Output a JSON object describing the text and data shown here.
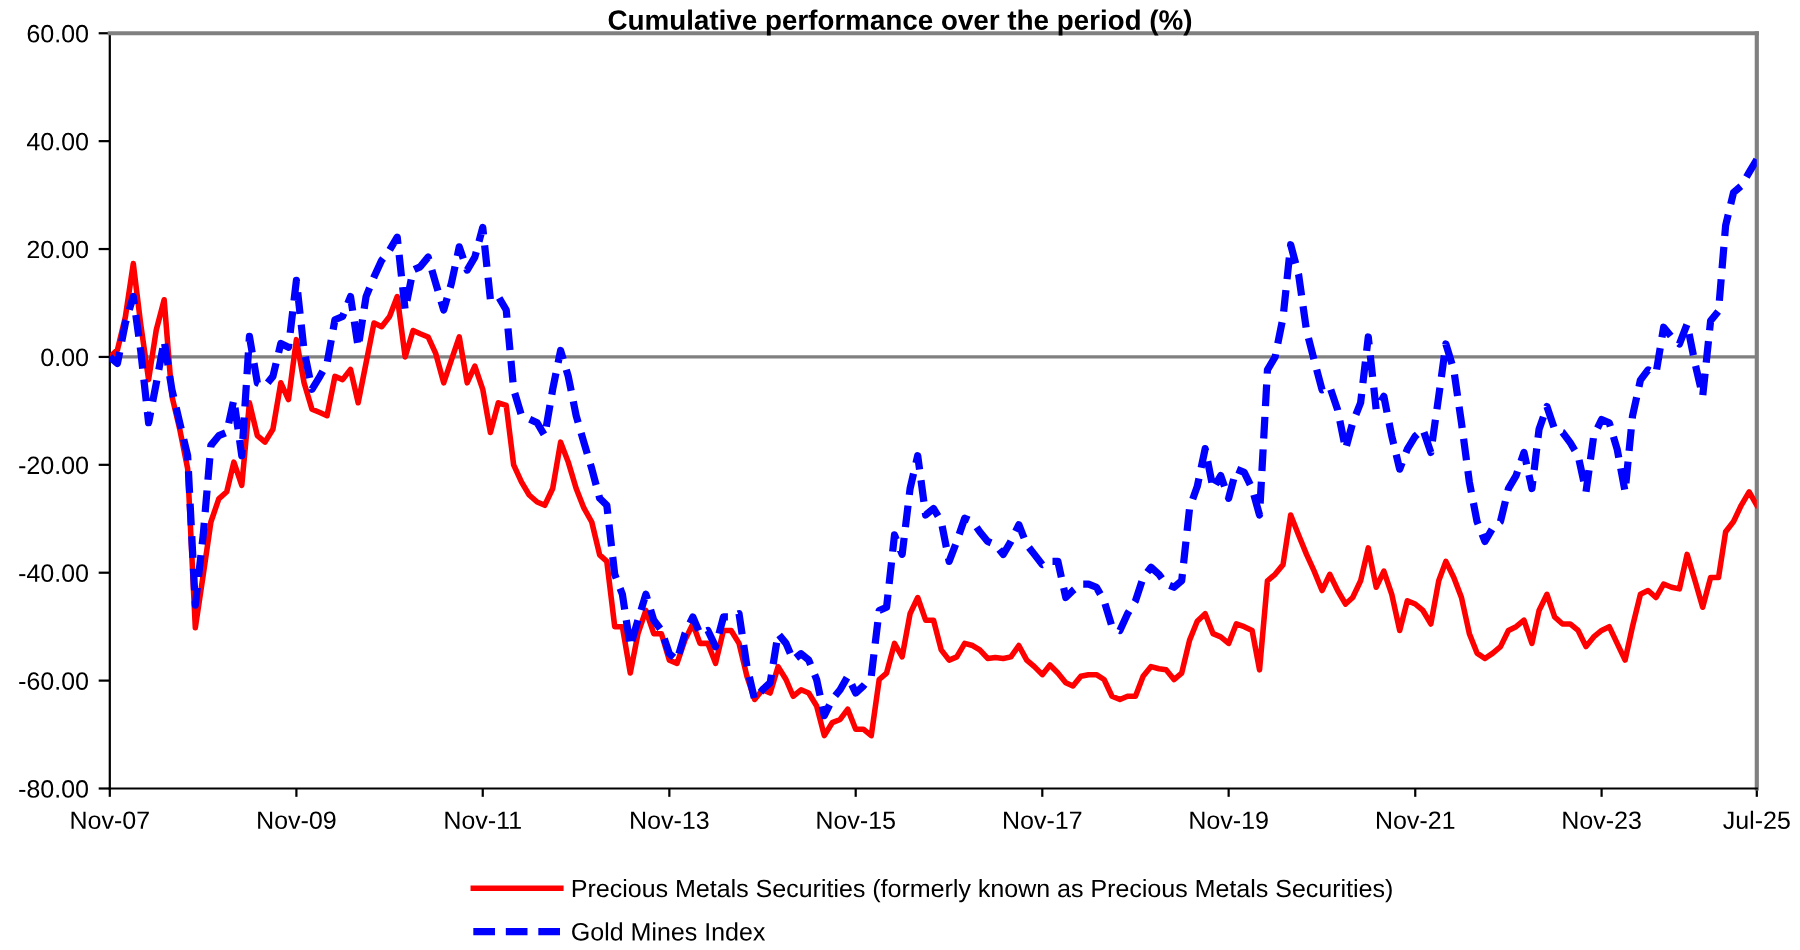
{
  "chart_data": {
    "type": "line",
    "title": "Cumulative performance over the period (%)",
    "x": [
      "2007-11",
      "2007-12",
      "2008-01",
      "2008-02",
      "2008-03",
      "2008-04",
      "2008-05",
      "2008-06",
      "2008-07",
      "2008-08",
      "2008-09",
      "2008-10",
      "2008-11",
      "2008-12",
      "2009-01",
      "2009-02",
      "2009-03",
      "2009-04",
      "2009-05",
      "2009-06",
      "2009-07",
      "2009-08",
      "2009-09",
      "2009-10",
      "2009-11",
      "2009-12",
      "2010-01",
      "2010-02",
      "2010-03",
      "2010-04",
      "2010-05",
      "2010-06",
      "2010-07",
      "2010-08",
      "2010-09",
      "2010-10",
      "2010-11",
      "2010-12",
      "2011-01",
      "2011-02",
      "2011-03",
      "2011-04",
      "2011-05",
      "2011-06",
      "2011-07",
      "2011-08",
      "2011-09",
      "2011-10",
      "2011-11",
      "2011-12",
      "2012-01",
      "2012-02",
      "2012-03",
      "2012-04",
      "2012-05",
      "2012-06",
      "2012-07",
      "2012-08",
      "2012-09",
      "2012-10",
      "2012-11",
      "2012-12",
      "2013-01",
      "2013-02",
      "2013-03",
      "2013-04",
      "2013-05",
      "2013-06",
      "2013-07",
      "2013-08",
      "2013-09",
      "2013-10",
      "2013-11",
      "2013-12",
      "2014-01",
      "2014-02",
      "2014-03",
      "2014-04",
      "2014-05",
      "2014-06",
      "2014-07",
      "2014-08",
      "2014-09",
      "2014-10",
      "2014-11",
      "2014-12",
      "2015-01",
      "2015-02",
      "2015-03",
      "2015-04",
      "2015-05",
      "2015-06",
      "2015-07",
      "2015-08",
      "2015-09",
      "2015-10",
      "2015-11",
      "2015-12",
      "2016-01",
      "2016-02",
      "2016-03",
      "2016-04",
      "2016-05",
      "2016-06",
      "2016-07",
      "2016-08",
      "2016-09",
      "2016-10",
      "2016-11",
      "2016-12",
      "2017-01",
      "2017-02",
      "2017-03",
      "2017-04",
      "2017-05",
      "2017-06",
      "2017-07",
      "2017-08",
      "2017-09",
      "2017-10",
      "2017-11",
      "2017-12",
      "2018-01",
      "2018-02",
      "2018-03",
      "2018-04",
      "2018-05",
      "2018-06",
      "2018-07",
      "2018-08",
      "2018-09",
      "2018-10",
      "2018-11",
      "2018-12",
      "2019-01",
      "2019-02",
      "2019-03",
      "2019-04",
      "2019-05",
      "2019-06",
      "2019-07",
      "2019-08",
      "2019-09",
      "2019-10",
      "2019-11",
      "2019-12",
      "2020-01",
      "2020-02",
      "2020-03",
      "2020-04",
      "2020-05",
      "2020-06",
      "2020-07",
      "2020-08",
      "2020-09",
      "2020-10",
      "2020-11",
      "2020-12",
      "2021-01",
      "2021-02",
      "2021-03",
      "2021-04",
      "2021-05",
      "2021-06",
      "2021-07",
      "2021-08",
      "2021-09",
      "2021-10",
      "2021-11",
      "2021-12",
      "2022-01",
      "2022-02",
      "2022-03",
      "2022-04",
      "2022-05",
      "2022-06",
      "2022-07",
      "2022-08",
      "2022-09",
      "2022-10",
      "2022-11",
      "2022-12",
      "2023-01",
      "2023-02",
      "2023-03",
      "2023-04",
      "2023-05",
      "2023-06",
      "2023-07",
      "2023-08",
      "2023-09",
      "2023-10",
      "2023-11",
      "2023-12",
      "2024-01",
      "2024-02",
      "2024-03",
      "2024-04",
      "2024-05",
      "2024-06",
      "2024-07",
      "2024-08",
      "2024-09",
      "2024-10",
      "2024-11",
      "2024-12",
      "2025-01",
      "2025-02",
      "2025-03",
      "2025-04",
      "2025-05",
      "2025-06",
      "2025-07"
    ],
    "series": [
      {
        "name": "Precious Metals Securities (formerly known as Precious Metals Securities)",
        "color": "#ff0000",
        "line_style": "solid",
        "values": [
          0,
          1.3,
          7.4,
          17.3,
          6.1,
          -4.2,
          5,
          10.6,
          -7.2,
          -13.4,
          -20.7,
          -50.2,
          -40.4,
          -30.6,
          -26.3,
          -25,
          -19.5,
          -23.8,
          -8.5,
          -14.6,
          -15.8,
          -13.4,
          -4.8,
          -7.9,
          3.2,
          -4.8,
          -9.7,
          -10.3,
          -10.9,
          -3.6,
          -4.2,
          -2.3,
          -8.5,
          -1.1,
          6.3,
          5.6,
          7.5,
          11.2,
          0,
          4.9,
          4.3,
          3.7,
          0.6,
          -4.8,
          -0.6,
          3.7,
          -4.8,
          -1.7,
          -6,
          -14,
          -8.5,
          -9,
          -20,
          -23.2,
          -25.6,
          -26.9,
          -27.5,
          -24.4,
          -15.8,
          -19.5,
          -24.4,
          -28,
          -30.6,
          -36.7,
          -37.9,
          -50,
          -50,
          -58.6,
          -51.3,
          -47,
          -51.3,
          -51.3,
          -56.2,
          -56.8,
          -52.5,
          -49.5,
          -53.1,
          -53.1,
          -56.8,
          -50.7,
          -50.7,
          -53.1,
          -59.2,
          -63.5,
          -61.7,
          -62.3,
          -57.4,
          -59.8,
          -62.9,
          -61.7,
          -62.3,
          -64.7,
          -70.2,
          -67.8,
          -67.2,
          -65.3,
          -69,
          -69,
          -70.2,
          -59.8,
          -58.6,
          -53.1,
          -55.6,
          -47.6,
          -44.6,
          -48.8,
          -48.8,
          -54.3,
          -56.2,
          -55.6,
          -53.1,
          -53.5,
          -54.3,
          -55.9,
          -55.7,
          -55.9,
          -55.6,
          -53.5,
          -56.2,
          -57.4,
          -58.9,
          -57.1,
          -58.6,
          -60.4,
          -61,
          -59.2,
          -58.9,
          -58.9,
          -59.8,
          -62.9,
          -63.5,
          -62.9,
          -62.9,
          -59.2,
          -57.4,
          -57.8,
          -58,
          -59.8,
          -58.6,
          -52.5,
          -49,
          -47.6,
          -51.3,
          -51.9,
          -53.1,
          -49.5,
          -50,
          -50.7,
          -58,
          -41.5,
          -40.3,
          -38.5,
          -29.3,
          -33,
          -36.6,
          -39.7,
          -43.3,
          -40.3,
          -43.3,
          -45.8,
          -44.6,
          -41.5,
          -35.4,
          -42.7,
          -39.7,
          -44,
          -50.7,
          -45.2,
          -45.8,
          -47,
          -49.5,
          -41.5,
          -37.9,
          -40.9,
          -44.6,
          -51.3,
          -54.9,
          -55.9,
          -54.9,
          -53.7,
          -50.7,
          -50,
          -48.8,
          -53.1,
          -47,
          -44,
          -48.2,
          -49.5,
          -49.5,
          -50.7,
          -53.7,
          -51.9,
          -50.7,
          -50,
          -53.1,
          -56.2,
          -50,
          -44,
          -43.3,
          -44.6,
          -42.1,
          -42.7,
          -43,
          -36.6,
          -41.5,
          -46.4,
          -40.9,
          -40.9,
          -32.4,
          -30.5,
          -27.5,
          -25,
          -27.5
        ]
      },
      {
        "name": "Gold Mines Index",
        "color": "#0000ff",
        "line_style": "dashed",
        "values": [
          0,
          -1.2,
          6.3,
          11.2,
          1.2,
          -12.2,
          -4.9,
          3,
          -6,
          -12.2,
          -18.3,
          -46,
          -33,
          -16.4,
          -14.6,
          -14,
          -7.9,
          -18.3,
          3.8,
          -4.8,
          -5.4,
          -3.6,
          2.5,
          1.8,
          14.2,
          1.2,
          -6,
          -3.6,
          -1.2,
          6.9,
          7.5,
          11.2,
          1.8,
          11.2,
          14.8,
          17.9,
          19.8,
          22.2,
          8.7,
          16.1,
          16.7,
          18.5,
          13.6,
          8.7,
          13.6,
          20.4,
          16.1,
          18.5,
          24,
          10.6,
          11.2,
          8.7,
          -6,
          -10.9,
          -11.5,
          -12.2,
          -14.6,
          -6,
          1.2,
          -3.6,
          -10.9,
          -15.8,
          -20.7,
          -26.2,
          -27.5,
          -40.3,
          -44,
          -53.7,
          -48.8,
          -44,
          -48.8,
          -50.7,
          -55,
          -56.2,
          -51.3,
          -48.2,
          -51.3,
          -50.7,
          -53.7,
          -48.2,
          -48.2,
          -47.6,
          -57.4,
          -63.5,
          -61.7,
          -60.4,
          -51.3,
          -53.1,
          -56.2,
          -55,
          -56.2,
          -59.8,
          -66.5,
          -63.5,
          -61.7,
          -59.2,
          -62.3,
          -61,
          -59.2,
          -47,
          -46.4,
          -33,
          -36.6,
          -24.4,
          -18.3,
          -29.3,
          -28.1,
          -30.5,
          -37.9,
          -34.2,
          -29.9,
          -30.5,
          -32.4,
          -34.2,
          -34.8,
          -36.6,
          -34.2,
          -31.1,
          -34.8,
          -36.6,
          -38.5,
          -37.9,
          -37.9,
          -44.6,
          -43.3,
          -42.1,
          -42.1,
          -42.7,
          -45.2,
          -50,
          -50.7,
          -47.6,
          -45.2,
          -40.9,
          -39,
          -40.3,
          -42.1,
          -42.7,
          -41.5,
          -28,
          -24,
          -17,
          -24.4,
          -22,
          -26.2,
          -20.8,
          -21.4,
          -24.4,
          -29.3,
          -2.4,
          0,
          7.3,
          20.8,
          15.3,
          4.9,
          -0.6,
          -6.1,
          -5.5,
          -9.8,
          -17.1,
          -12.2,
          -8.5,
          3.7,
          -9.8,
          -7.3,
          -14.7,
          -20.8,
          -17.1,
          -14.7,
          -13.4,
          -17.7,
          -7.3,
          2.4,
          -2.4,
          -12.2,
          -23.2,
          -30.5,
          -34.2,
          -31.7,
          -30.5,
          -24.4,
          -22,
          -17.7,
          -24.4,
          -13.4,
          -9.2,
          -13.4,
          -14,
          -15.9,
          -18.3,
          -25,
          -14.7,
          -11.6,
          -12.2,
          -17.1,
          -25,
          -11,
          -4.3,
          -2.4,
          -3.1,
          5.5,
          3.7,
          2.4,
          6.1,
          -1.2,
          -7.3,
          6.7,
          8.5,
          24.4,
          30.5,
          31.7,
          34.2,
          36.6
        ]
      }
    ],
    "xlim": [
      "2007-11",
      "2025-07"
    ],
    "xticks": [
      {
        "value": "2007-11",
        "label": "Nov-07"
      },
      {
        "value": "2009-11",
        "label": "Nov-09"
      },
      {
        "value": "2011-11",
        "label": "Nov-11"
      },
      {
        "value": "2013-11",
        "label": "Nov-13"
      },
      {
        "value": "2015-11",
        "label": "Nov-15"
      },
      {
        "value": "2017-11",
        "label": "Nov-17"
      },
      {
        "value": "2019-11",
        "label": "Nov-19"
      },
      {
        "value": "2021-11",
        "label": "Nov-21"
      },
      {
        "value": "2023-11",
        "label": "Nov-23"
      },
      {
        "value": "2025-07",
        "label": "Jul-25"
      }
    ],
    "ylim": [
      -80,
      60
    ],
    "yticks": [
      {
        "value": -80,
        "label": "-80.00"
      },
      {
        "value": -60,
        "label": "-60.00"
      },
      {
        "value": -40,
        "label": "-40.00"
      },
      {
        "value": -20,
        "label": "-20.00"
      },
      {
        "value": 0,
        "label": "0.00"
      },
      {
        "value": 20,
        "label": "20.00"
      },
      {
        "value": 40,
        "label": "40.00"
      },
      {
        "value": 60,
        "label": "60.00"
      }
    ],
    "ref_lines": [
      {
        "axis": "y",
        "value": 0,
        "color": "#808080"
      }
    ],
    "grid": false,
    "legend": "bottom",
    "marker": "none"
  }
}
